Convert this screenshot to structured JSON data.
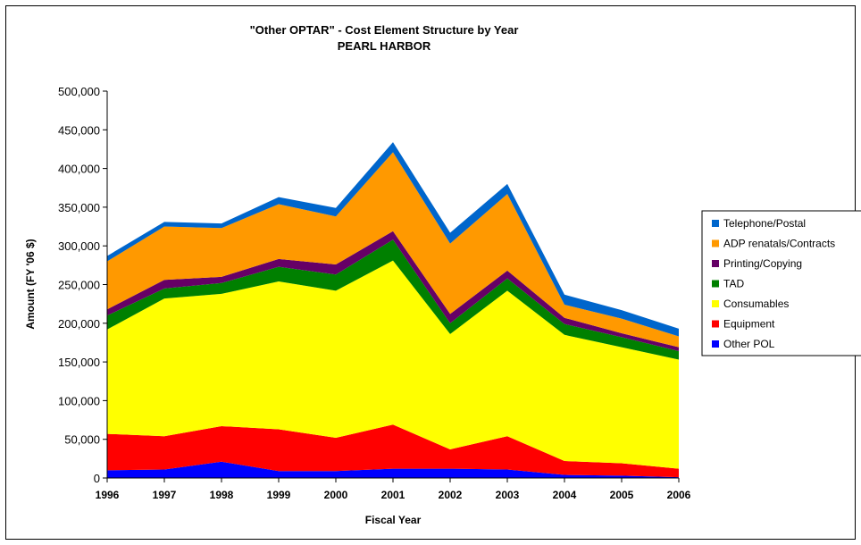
{
  "chart_data": {
    "type": "area",
    "stacked": true,
    "title": "\"Other OPTAR\" - Cost Element Structure by Year",
    "subtitle": "PEARL HARBOR",
    "xlabel": "Fiscal Year",
    "ylabel": "Amount (FY '06 $)",
    "ylim": [
      0,
      500000
    ],
    "yticks": [
      "0",
      "50,000",
      "100,000",
      "150,000",
      "200,000",
      "250,000",
      "300,000",
      "350,000",
      "400,000",
      "450,000",
      "500,000"
    ],
    "categories": [
      "1996",
      "1997",
      "1998",
      "1999",
      "2000",
      "2001",
      "2002",
      "2003",
      "2004",
      "2005",
      "2006"
    ],
    "legend_position": "right",
    "grid": false,
    "series": [
      {
        "name": "Other POL",
        "color": "#0000FF",
        "values": [
          10000,
          11000,
          21000,
          9000,
          9000,
          12000,
          12000,
          11000,
          4000,
          3000,
          1000
        ]
      },
      {
        "name": "Equipment",
        "color": "#FF0000",
        "values": [
          47000,
          43000,
          46000,
          54000,
          43000,
          57000,
          25000,
          43000,
          18000,
          16000,
          11000
        ]
      },
      {
        "name": "Consumables",
        "color": "#FFFF00",
        "values": [
          135000,
          178000,
          171000,
          191000,
          190000,
          212000,
          149000,
          188000,
          163000,
          150000,
          141000
        ]
      },
      {
        "name": "TAD",
        "color": "#008000",
        "values": [
          18000,
          13000,
          14000,
          19000,
          21000,
          27000,
          14000,
          16000,
          14000,
          13000,
          11000
        ]
      },
      {
        "name": "Printing/Copying",
        "color": "#660066",
        "values": [
          8000,
          11000,
          8000,
          10000,
          13000,
          11000,
          12000,
          10000,
          8000,
          5000,
          5000
        ]
      },
      {
        "name": "ADP renatals/Contracts",
        "color": "#FF9900",
        "values": [
          62000,
          69000,
          63000,
          71000,
          62000,
          102000,
          91000,
          99000,
          17000,
          19000,
          14000
        ]
      },
      {
        "name": "Telephone/Postal",
        "color": "#0066CC",
        "values": [
          7000,
          6000,
          6000,
          9000,
          11000,
          13000,
          14000,
          13000,
          13000,
          11000,
          10000
        ]
      }
    ]
  }
}
